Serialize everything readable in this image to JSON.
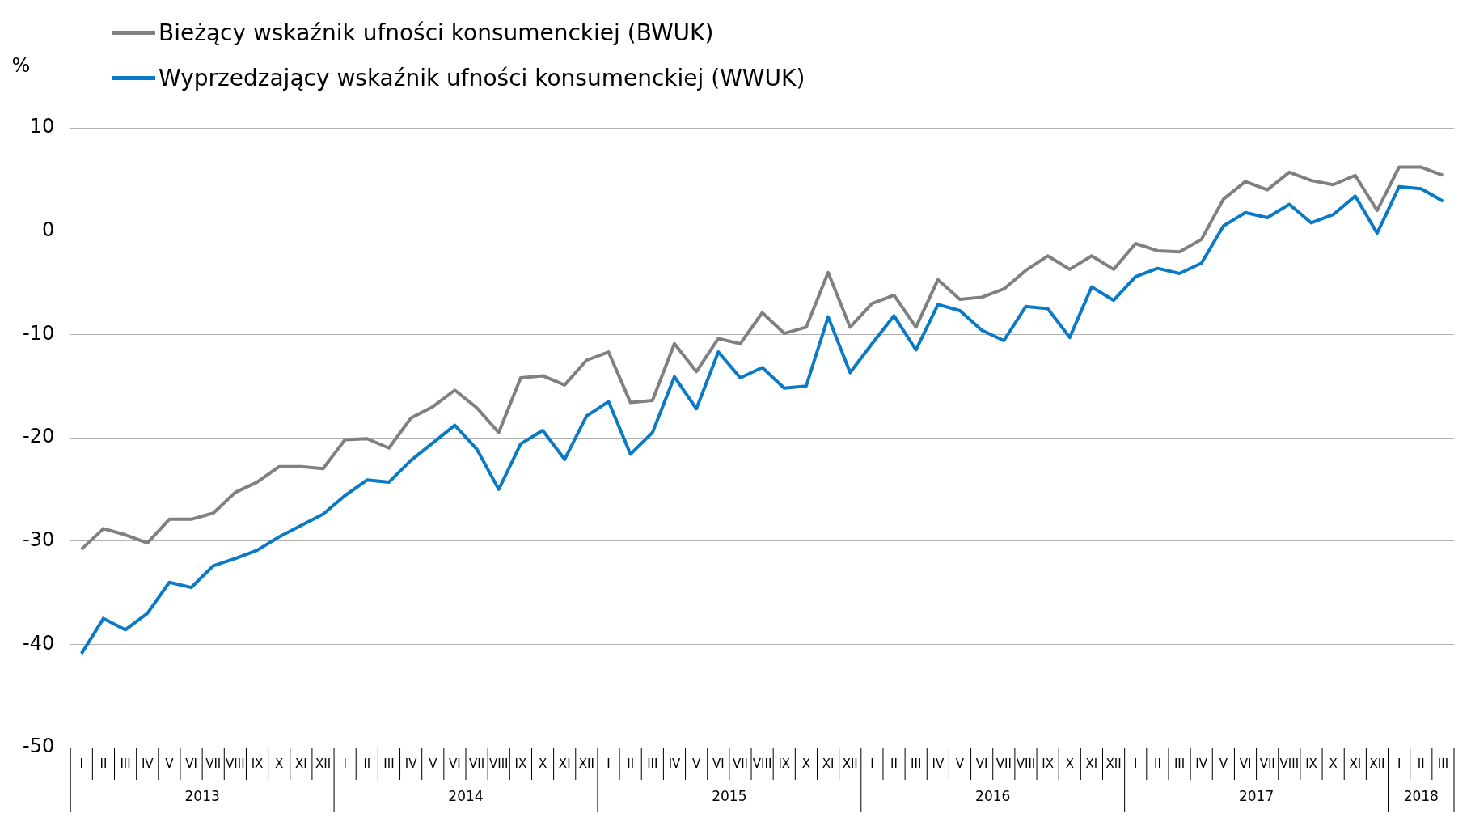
{
  "chart_data": {
    "type": "line",
    "ylabel": "%",
    "categories": [
      "I",
      "II",
      "III",
      "IV",
      "V",
      "VI",
      "VII",
      "VIII",
      "IX",
      "X",
      "XI",
      "XII",
      "I",
      "II",
      "III",
      "IV",
      "V",
      "VI",
      "VII",
      "VIII",
      "IX",
      "X",
      "XI",
      "XII",
      "I",
      "II",
      "III",
      "IV",
      "V",
      "VI",
      "VII",
      "VIII",
      "IX",
      "X",
      "XI",
      "XII",
      "I",
      "II",
      "III",
      "IV",
      "V",
      "VI",
      "VII",
      "VIII",
      "IX",
      "X",
      "XI",
      "XII",
      "I",
      "II",
      "III",
      "IV",
      "V",
      "VI",
      "VII",
      "VIII",
      "IX",
      "X",
      "XI",
      "XII",
      "I",
      "II",
      "III"
    ],
    "annotations": [
      "2013",
      "2014",
      "2015",
      "2016",
      "2017",
      "2018"
    ],
    "series": [
      {
        "name": "Bieżący wskaźnik ufności konsumenckiej (BWUK)",
        "color": "#808080",
        "values": [
          -30.8,
          -28.8,
          -29.4,
          -30.2,
          -27.9,
          -27.9,
          -27.3,
          -25.3,
          -24.3,
          -22.8,
          -22.8,
          -23.0,
          -20.2,
          -20.1,
          -21.0,
          -18.1,
          -17.0,
          -15.4,
          -17.1,
          -19.5,
          -14.2,
          -14.0,
          -14.9,
          -12.5,
          -11.7,
          -16.6,
          -16.4,
          -10.9,
          -13.6,
          -10.4,
          -10.9,
          -7.9,
          -9.9,
          -9.3,
          -4.0,
          -9.3,
          -7.0,
          -6.2,
          -9.3,
          -4.7,
          -6.6,
          -6.4,
          -5.6,
          -3.8,
          -2.4,
          -3.7,
          -2.4,
          -3.7,
          -1.2,
          -1.9,
          -2.0,
          -0.8,
          3.1,
          4.8,
          4.0,
          5.7,
          4.9,
          4.5,
          5.4,
          2.0,
          6.2,
          6.2,
          5.4
        ]
      },
      {
        "name": "Wyprzedzający wskaźnik ufności konsumenckiej (WWUK)",
        "color": "#0a7ac6",
        "values": [
          -40.9,
          -37.5,
          -38.6,
          -37.0,
          -34.0,
          -34.5,
          -32.4,
          -31.7,
          -30.9,
          -29.6,
          -28.5,
          -27.4,
          -25.6,
          -24.1,
          -24.3,
          -22.2,
          -20.5,
          -18.8,
          -21.1,
          -25.0,
          -20.6,
          -19.3,
          -22.1,
          -17.9,
          -16.5,
          -21.6,
          -19.5,
          -14.1,
          -17.2,
          -11.7,
          -14.2,
          -13.2,
          -15.2,
          -15.0,
          -8.3,
          -13.7,
          -10.9,
          -8.2,
          -11.5,
          -7.1,
          -7.7,
          -9.6,
          -10.6,
          -7.3,
          -7.5,
          -10.3,
          -5.4,
          -6.7,
          -4.4,
          -3.6,
          -4.1,
          -3.1,
          0.5,
          1.8,
          1.3,
          2.6,
          0.8,
          1.6,
          3.4,
          -0.2,
          4.3,
          4.1,
          2.9
        ]
      }
    ],
    "ylim": [
      -50,
      10
    ],
    "yticks": [
      -50,
      -40,
      -30,
      -20,
      -10,
      0,
      10
    ],
    "grid": "y",
    "legend": "top left",
    "marker": "none",
    "line_style": "solid"
  }
}
